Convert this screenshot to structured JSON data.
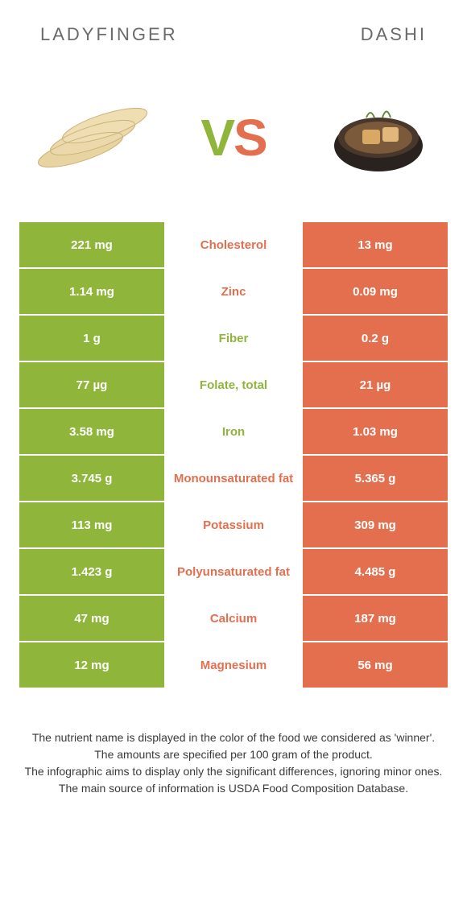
{
  "header": {
    "left_title": "LADYFINGER",
    "right_title": "DASHI"
  },
  "vs": {
    "v": "V",
    "s": "S"
  },
  "colors": {
    "green": "#8fb53b",
    "orange": "#e36f4f",
    "text": "#6a6a6a",
    "footnote_text": "#3a3a3a",
    "background": "#ffffff"
  },
  "rows": [
    {
      "left": "221 mg",
      "label": "Cholesterol",
      "right": "13 mg",
      "winner": "orange"
    },
    {
      "left": "1.14 mg",
      "label": "Zinc",
      "right": "0.09 mg",
      "winner": "orange"
    },
    {
      "left": "1 g",
      "label": "Fiber",
      "right": "0.2 g",
      "winner": "green"
    },
    {
      "left": "77 µg",
      "label": "Folate, total",
      "right": "21 µg",
      "winner": "green"
    },
    {
      "left": "3.58 mg",
      "label": "Iron",
      "right": "1.03 mg",
      "winner": "green"
    },
    {
      "left": "3.745 g",
      "label": "Monounsaturated fat",
      "right": "5.365 g",
      "winner": "orange"
    },
    {
      "left": "113 mg",
      "label": "Potassium",
      "right": "309 mg",
      "winner": "orange"
    },
    {
      "left": "1.423 g",
      "label": "Polyunsaturated fat",
      "right": "4.485 g",
      "winner": "orange"
    },
    {
      "left": "47 mg",
      "label": "Calcium",
      "right": "187 mg",
      "winner": "orange"
    },
    {
      "left": "12 mg",
      "label": "Magnesium",
      "right": "56 mg",
      "winner": "orange"
    }
  ],
  "footnote": {
    "line1": "The nutrient name is displayed in the color of the food we considered as 'winner'.",
    "line2": "The amounts are specified per 100 gram of the product.",
    "line3": "The infographic aims to display only the significant differences, ignoring minor ones.",
    "line4": "The main source of information is USDA Food Composition Database."
  }
}
